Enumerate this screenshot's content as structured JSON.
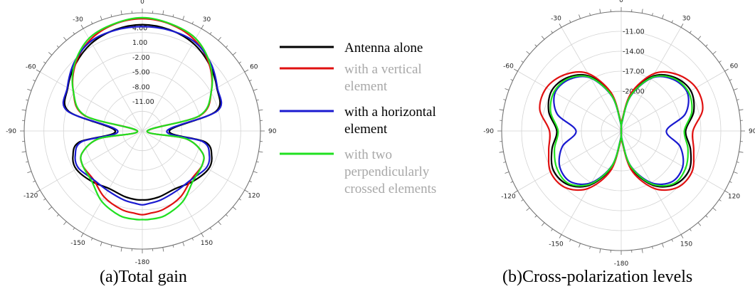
{
  "chart_data": [
    {
      "type": "polar",
      "caption": "(a)Total gain",
      "angle_ticks": [
        "0",
        "30",
        "60",
        "90",
        "120",
        "150",
        "-180",
        "-150",
        "-120",
        "-90",
        "-60",
        "-30"
      ],
      "radial_ticks": [
        "4.00",
        "1.00",
        "-2.00",
        "-5.00",
        "-8.00",
        "-11.00"
      ],
      "rlim": [
        -17,
        7
      ],
      "series": [
        {
          "name": "Antenna alone",
          "color": "#000000",
          "theta": [
            0,
            15,
            30,
            45,
            60,
            75,
            90,
            100,
            110,
            120,
            135,
            150,
            165,
            175,
            180
          ],
          "r": [
            4.6,
            4.3,
            3.6,
            2.2,
            0.5,
            -1.5,
            -11.5,
            -4,
            -2,
            -1.5,
            -2.5,
            -3.5,
            -3.2,
            -3,
            -3
          ]
        },
        {
          "name": "with a vertical element",
          "color": "#e01010",
          "theta": [
            0,
            15,
            30,
            45,
            60,
            75,
            90,
            100,
            110,
            120,
            135,
            150,
            165,
            175,
            180
          ],
          "r": [
            5.8,
            5.4,
            4.3,
            2.2,
            -0.8,
            -4.8,
            -16,
            -8,
            -4,
            -3,
            -3,
            -1.5,
            -0.5,
            -0.2,
            0
          ]
        },
        {
          "name": "with a horizontal element",
          "color": "#1a1ad0",
          "theta": [
            0,
            15,
            30,
            45,
            60,
            75,
            90,
            100,
            110,
            120,
            135,
            150,
            165,
            175,
            180
          ],
          "r": [
            4.2,
            4.2,
            4.0,
            2.6,
            0.6,
            -1.2,
            -12,
            -4.5,
            -2.5,
            -2,
            -3,
            -3,
            -2.5,
            -2.2,
            -2
          ]
        },
        {
          "name": "with two perpendicularly crossed elements",
          "color": "#20e020",
          "theta": [
            0,
            15,
            30,
            45,
            60,
            75,
            90,
            100,
            110,
            120,
            135,
            150,
            165,
            175,
            180
          ],
          "r": [
            6,
            5.5,
            4.7,
            2.4,
            -0.8,
            -5,
            -16,
            -8,
            -4,
            -3,
            -2.5,
            -0.5,
            0.8,
            1,
            1
          ]
        }
      ]
    },
    {
      "type": "polar",
      "caption": "(b)Cross-polarization levels",
      "angle_ticks": [
        "0",
        "30",
        "60",
        "90",
        "120",
        "150",
        "-180",
        "-150",
        "-120",
        "-90",
        "-60",
        "-30"
      ],
      "radial_ticks": [
        "-11.00",
        "-14.00",
        "-17.00",
        "-20.00"
      ],
      "rlim": [
        -26,
        -8
      ],
      "series": [
        {
          "name": "Antenna alone",
          "color": "#000000",
          "theta": [
            0,
            5,
            15,
            30,
            45,
            60,
            75,
            90,
            105,
            120,
            135,
            150,
            165,
            175,
            180
          ],
          "r": [
            -26,
            -24.5,
            -20.3,
            -16.5,
            -14.6,
            -13.9,
            -14.7,
            -16.3,
            -15.2,
            -14.2,
            -14.6,
            -16.6,
            -20.3,
            -24.5,
            -26
          ]
        },
        {
          "name": "with a vertical element",
          "color": "#e01010",
          "theta": [
            0,
            5,
            15,
            30,
            45,
            60,
            75,
            90,
            105,
            120,
            135,
            150,
            165,
            175,
            180
          ],
          "r": [
            -26,
            -24.3,
            -20,
            -16,
            -14,
            -13,
            -13.3,
            -15.2,
            -14.7,
            -13.7,
            -14,
            -16,
            -19.8,
            -24.3,
            -26
          ]
        },
        {
          "name": "with a horizontal element",
          "color": "#1a1ad0",
          "theta": [
            0,
            5,
            15,
            30,
            45,
            60,
            75,
            90,
            105,
            120,
            135,
            150,
            165,
            175,
            180
          ],
          "r": [
            -26,
            -24.7,
            -20.6,
            -16.8,
            -15,
            -14.5,
            -16,
            -19.2,
            -16.8,
            -15.3,
            -15.2,
            -17,
            -20.6,
            -24.7,
            -26
          ]
        },
        {
          "name": "with two perpendicularly crossed elements",
          "color": "#20e020",
          "theta": [
            0,
            5,
            15,
            30,
            45,
            60,
            75,
            90,
            105,
            120,
            135,
            150,
            165,
            175,
            180
          ],
          "r": [
            -26,
            -24.6,
            -20.5,
            -16.7,
            -14.8,
            -14.3,
            -15,
            -16.5,
            -15.6,
            -14.8,
            -14.8,
            -16.8,
            -20.5,
            -24.6,
            -26
          ]
        }
      ]
    }
  ],
  "legend": {
    "items": [
      {
        "label_lines": [
          "Antenna alone"
        ],
        "color": "#000000",
        "text_color": "#000000"
      },
      {
        "label_lines": [
          "with a vertical",
          "element"
        ],
        "color": "#e01010",
        "text_color": "#a8a8a8"
      },
      {
        "label_lines": [
          "with a horizontal",
          "element"
        ],
        "color": "#1a1ad0",
        "text_color": "#000000"
      },
      {
        "label_lines": [
          "with two",
          "perpendicularly",
          "crossed elements"
        ],
        "color": "#20e020",
        "text_color": "#a8a8a8"
      }
    ]
  }
}
